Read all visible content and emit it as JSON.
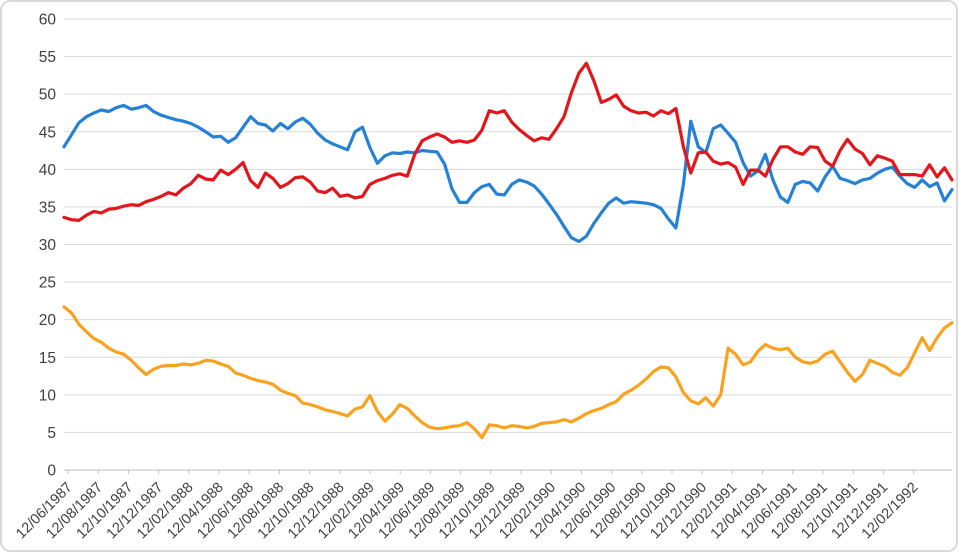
{
  "chart_data": {
    "type": "line",
    "title": "",
    "xlabel": "",
    "ylabel": "",
    "ylim": [
      0,
      60
    ],
    "grid": true,
    "legend": "none",
    "y_ticks": [
      0,
      5,
      10,
      15,
      20,
      25,
      30,
      35,
      40,
      45,
      50,
      55,
      60
    ],
    "x_tick_labels": [
      "12/06/1987",
      "12/08/1987",
      "12/10/1987",
      "12/12/1987",
      "12/02/1988",
      "12/04/1988",
      "12/06/1988",
      "12/08/1988",
      "12/10/1988",
      "12/12/1988",
      "12/02/1989",
      "12/04/1989",
      "12/06/1989",
      "12/08/1989",
      "12/10/1989",
      "12/12/1989",
      "12/02/1990",
      "12/04/1990",
      "12/06/1990",
      "12/08/1990",
      "12/10/1990",
      "12/12/1990",
      "12/02/1991",
      "12/04/1991",
      "12/06/1991",
      "12/08/1991",
      "12/10/1991",
      "12/12/1991",
      "12/02/1992"
    ],
    "colors": {
      "grid": "#d9d9d9",
      "axis": "#bfbfbf",
      "label": "#404040",
      "blue": "#2481d6",
      "red": "#e2161b",
      "orange": "#f8a21d"
    },
    "series": [
      {
        "name": "series-blue",
        "color": "#2481d6",
        "values": [
          43.0,
          44.6,
          46.2,
          47.0,
          47.5,
          47.9,
          47.7,
          48.2,
          48.5,
          48.0,
          48.2,
          48.5,
          47.7,
          47.2,
          46.9,
          46.6,
          46.4,
          46.1,
          45.6,
          45.0,
          44.3,
          44.4,
          43.6,
          44.2,
          45.6,
          47.0,
          46.1,
          45.9,
          45.1,
          46.1,
          45.4,
          46.3,
          46.8,
          46.0,
          44.8,
          43.9,
          43.4,
          43.0,
          42.6,
          45.0,
          45.6,
          42.9,
          40.8,
          41.8,
          42.2,
          42.1,
          42.3,
          42.2,
          42.5,
          42.4,
          42.3,
          40.7,
          37.4,
          35.6,
          35.6,
          36.9,
          37.7,
          38.0,
          36.7,
          36.6,
          38.0,
          38.6,
          38.3,
          37.8,
          36.7,
          35.4,
          34.0,
          32.4,
          30.9,
          30.4,
          31.1,
          32.8,
          34.2,
          35.5,
          36.2,
          35.5,
          35.7,
          35.6,
          35.5,
          35.3,
          34.8,
          33.4,
          32.2,
          38.0,
          46.4,
          43.0,
          42.2,
          45.4,
          45.9,
          44.8,
          43.6,
          40.9,
          39.1,
          39.8,
          42.0,
          38.6,
          36.3,
          35.6,
          38.0,
          38.4,
          38.2,
          37.1,
          39.0,
          40.4,
          38.8,
          38.5,
          38.1,
          38.6,
          38.8,
          39.5,
          40.0,
          40.3,
          39.1,
          38.1,
          37.6,
          38.6,
          37.7,
          38.2,
          35.8,
          37.3
        ]
      },
      {
        "name": "series-red",
        "color": "#e2161b",
        "values": [
          33.6,
          33.3,
          33.2,
          33.9,
          34.4,
          34.2,
          34.7,
          34.8,
          35.1,
          35.3,
          35.2,
          35.7,
          36.0,
          36.4,
          36.9,
          36.6,
          37.5,
          38.1,
          39.2,
          38.7,
          38.6,
          39.9,
          39.3,
          40.0,
          40.9,
          38.5,
          37.6,
          39.5,
          38.8,
          37.6,
          38.1,
          38.9,
          39.0,
          38.3,
          37.1,
          36.9,
          37.5,
          36.4,
          36.6,
          36.2,
          36.4,
          38.0,
          38.5,
          38.8,
          39.2,
          39.4,
          39.1,
          42.0,
          43.8,
          44.3,
          44.7,
          44.3,
          43.6,
          43.8,
          43.6,
          43.9,
          45.2,
          47.8,
          47.5,
          47.8,
          46.3,
          45.3,
          44.5,
          43.8,
          44.2,
          44.0,
          45.4,
          47.0,
          50.2,
          52.8,
          54.1,
          51.8,
          48.9,
          49.3,
          49.9,
          48.4,
          47.8,
          47.5,
          47.6,
          47.1,
          47.8,
          47.4,
          48.1,
          43.0,
          39.5,
          42.2,
          42.3,
          41.1,
          40.7,
          40.9,
          40.3,
          38.0,
          39.9,
          39.9,
          39.1,
          41.3,
          43.0,
          43.0,
          42.3,
          42.0,
          43.0,
          42.9,
          41.1,
          40.4,
          42.5,
          44.0,
          42.7,
          42.1,
          40.6,
          41.8,
          41.5,
          41.1,
          39.3,
          39.3,
          39.3,
          39.1,
          40.6,
          39.0,
          40.2,
          38.6
        ]
      },
      {
        "name": "series-orange",
        "color": "#f8a21d",
        "values": [
          21.7,
          20.9,
          19.4,
          18.4,
          17.5,
          17.0,
          16.2,
          15.7,
          15.4,
          14.6,
          13.6,
          12.7,
          13.4,
          13.8,
          13.9,
          13.9,
          14.1,
          14.0,
          14.2,
          14.6,
          14.5,
          14.1,
          13.8,
          12.9,
          12.6,
          12.2,
          11.9,
          11.7,
          11.4,
          10.6,
          10.2,
          9.9,
          8.9,
          8.7,
          8.4,
          8.0,
          7.8,
          7.5,
          7.2,
          8.1,
          8.4,
          9.9,
          7.8,
          6.5,
          7.4,
          8.7,
          8.2,
          7.2,
          6.3,
          5.7,
          5.5,
          5.6,
          5.8,
          5.9,
          6.3,
          5.5,
          4.3,
          6.0,
          5.9,
          5.6,
          5.9,
          5.8,
          5.6,
          5.8,
          6.2,
          6.3,
          6.4,
          6.7,
          6.4,
          6.9,
          7.5,
          7.9,
          8.2,
          8.7,
          9.1,
          10.1,
          10.6,
          11.3,
          12.1,
          13.1,
          13.7,
          13.6,
          12.4,
          10.3,
          9.2,
          8.8,
          9.6,
          8.5,
          10.0,
          16.2,
          15.4,
          14.0,
          14.4,
          15.8,
          16.7,
          16.2,
          16.0,
          16.2,
          15.0,
          14.4,
          14.2,
          14.5,
          15.4,
          15.8,
          14.4,
          13.0,
          11.8,
          12.7,
          14.6,
          14.2,
          13.8,
          13.0,
          12.6,
          13.6,
          15.6,
          17.6,
          15.9,
          17.6,
          18.9,
          19.6
        ]
      }
    ]
  }
}
